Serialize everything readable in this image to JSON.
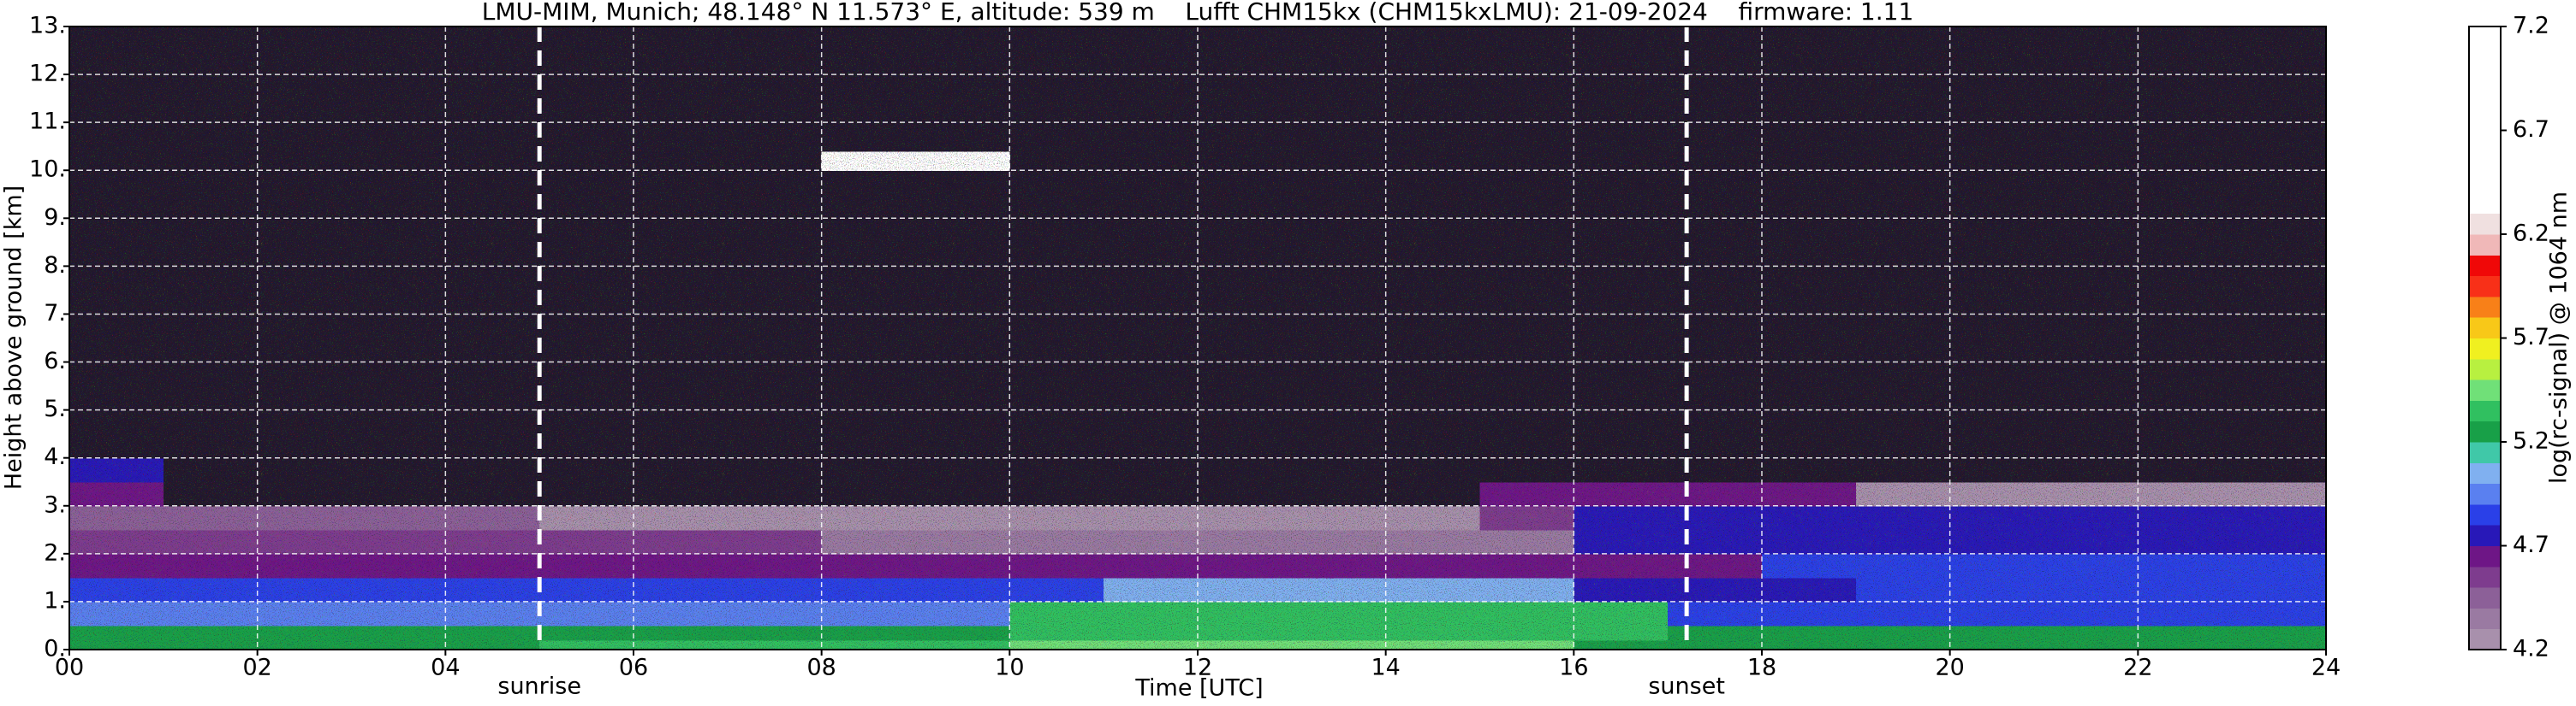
{
  "chart_data": {
    "type": "heatmap",
    "title": "LMU-MIM, Munich; 48.148° N 11.573° E, altitude: 539 m    Lufft CHM15kx (CHM15kxLMU): 21-09-2024    firmware: 1.11",
    "xlabel": "Time [UTC]",
    "ylabel": "Height above ground [km]",
    "xlim": [
      0,
      24
    ],
    "ylim": [
      0,
      13
    ],
    "xticks": [
      {
        "value": 0,
        "label": "00"
      },
      {
        "value": 2,
        "label": "02"
      },
      {
        "value": 4,
        "label": "04"
      },
      {
        "value": 6,
        "label": "06"
      },
      {
        "value": 8,
        "label": "08"
      },
      {
        "value": 10,
        "label": "10"
      },
      {
        "value": 12,
        "label": "12"
      },
      {
        "value": 14,
        "label": "14"
      },
      {
        "value": 16,
        "label": "16"
      },
      {
        "value": 18,
        "label": "18"
      },
      {
        "value": 20,
        "label": "20"
      },
      {
        "value": 22,
        "label": "22"
      },
      {
        "value": 24,
        "label": "24"
      }
    ],
    "yticks": [
      {
        "value": 0,
        "label": "0."
      },
      {
        "value": 1,
        "label": "1."
      },
      {
        "value": 2,
        "label": "2."
      },
      {
        "value": 3,
        "label": "3."
      },
      {
        "value": 4,
        "label": "4."
      },
      {
        "value": 5,
        "label": "5."
      },
      {
        "value": 6,
        "label": "6."
      },
      {
        "value": 7,
        "label": "7."
      },
      {
        "value": 8,
        "label": "8."
      },
      {
        "value": 9,
        "label": "9."
      },
      {
        "value": 10,
        "label": "10."
      },
      {
        "value": 11,
        "label": "11."
      },
      {
        "value": 12,
        "label": "12."
      },
      {
        "value": 13,
        "label": "13."
      }
    ],
    "grid": true,
    "grid_color": "#ffffff",
    "x_bins": [
      0,
      1,
      2,
      3,
      4,
      5,
      6,
      7,
      8,
      9,
      10,
      11,
      12,
      13,
      14,
      15,
      16,
      17,
      18,
      19,
      20,
      21,
      22,
      23,
      24
    ],
    "y_bins": [
      0,
      0.2,
      0.5,
      1.0,
      1.5,
      2.0,
      2.5,
      3.0,
      3.5,
      4.0,
      10.0,
      10.4,
      13
    ],
    "z": [
      [
        5.2,
        5.2,
        5.2,
        5.2,
        5.2,
        5.3,
        5.3,
        5.3,
        5.3,
        5.3,
        5.4,
        5.4,
        5.4,
        5.4,
        5.4,
        5.4,
        5.2,
        5.2,
        5.2,
        5.2,
        5.2,
        5.2,
        5.2,
        5.2
      ],
      [
        5.2,
        5.2,
        5.2,
        5.2,
        5.2,
        5.2,
        5.2,
        5.2,
        5.2,
        5.2,
        5.35,
        5.35,
        5.35,
        5.35,
        5.35,
        5.35,
        5.3,
        5.2,
        5.2,
        5.2,
        5.2,
        5.2,
        5.2,
        5.2
      ],
      [
        4.9,
        4.9,
        4.9,
        4.9,
        4.9,
        4.9,
        4.95,
        4.95,
        4.95,
        4.95,
        5.3,
        5.3,
        5.3,
        5.3,
        5.3,
        5.3,
        5.3,
        4.8,
        4.8,
        4.8,
        4.8,
        4.8,
        4.8,
        4.8
      ],
      [
        4.8,
        4.8,
        4.8,
        4.8,
        4.8,
        4.8,
        4.8,
        4.8,
        4.8,
        4.8,
        4.8,
        5.0,
        5.0,
        5.0,
        5.0,
        5.0,
        4.75,
        4.75,
        4.75,
        4.8,
        4.8,
        4.8,
        4.8,
        4.8
      ],
      [
        4.65,
        4.65,
        4.65,
        4.65,
        4.65,
        4.65,
        4.65,
        4.65,
        4.65,
        4.65,
        4.6,
        4.6,
        4.6,
        4.6,
        4.6,
        4.6,
        4.6,
        4.6,
        4.8,
        4.8,
        4.8,
        4.8,
        4.8,
        4.8
      ],
      [
        4.5,
        4.5,
        4.5,
        4.5,
        4.5,
        4.5,
        4.5,
        4.5,
        4.35,
        4.35,
        4.35,
        4.35,
        4.35,
        4.35,
        4.35,
        4.35,
        4.75,
        4.75,
        4.75,
        4.75,
        4.75,
        4.75,
        4.75,
        4.75
      ],
      [
        4.4,
        4.4,
        4.4,
        4.4,
        4.4,
        4.25,
        4.25,
        4.25,
        4.25,
        4.25,
        4.25,
        4.25,
        4.25,
        4.25,
        4.25,
        4.5,
        4.7,
        4.7,
        4.7,
        4.7,
        4.7,
        4.7,
        4.7,
        4.7
      ],
      [
        4.6,
        4.1,
        4.1,
        4.1,
        4.1,
        4.1,
        4.1,
        4.1,
        4.1,
        4.1,
        4.1,
        4.1,
        4.1,
        4.1,
        4.1,
        4.6,
        4.6,
        4.6,
        4.6,
        4.2,
        4.2,
        4.2,
        4.2,
        4.2
      ],
      [
        4.7,
        4.05,
        4.05,
        4.05,
        4.05,
        4.05,
        4.05,
        4.05,
        4.05,
        4.05,
        4.05,
        4.05,
        4.05,
        4.05,
        4.05,
        4.05,
        4.05,
        4.05,
        4.05,
        4.05,
        4.05,
        4.05,
        4.05,
        4.05
      ],
      [
        4.0,
        4.0,
        4.0,
        4.0,
        4.0,
        4.0,
        4.0,
        4.0,
        4.0,
        4.0,
        4.0,
        4.0,
        4.0,
        4.0,
        4.0,
        4.0,
        4.0,
        4.0,
        4.0,
        4.0,
        4.0,
        4.0,
        4.0,
        4.0
      ],
      [
        4.0,
        4.0,
        4.0,
        4.0,
        4.0,
        4.0,
        4.0,
        4.0,
        6.5,
        6.3,
        4.0,
        4.0,
        4.0,
        4.0,
        4.0,
        4.0,
        4.0,
        4.0,
        4.0,
        4.0,
        4.0,
        4.0,
        4.0,
        4.0
      ],
      [
        4.0,
        4.0,
        4.0,
        4.0,
        4.0,
        4.0,
        4.0,
        4.0,
        4.0,
        4.0,
        4.0,
        4.0,
        4.0,
        4.0,
        4.0,
        4.0,
        4.0,
        4.0,
        4.0,
        4.0,
        4.0,
        4.0,
        4.0,
        4.0
      ]
    ],
    "below_color": "#22182c",
    "colors": [
      "#a890ac",
      "#9a7aa2",
      "#8c6098",
      "#7e3c8e",
      "#6e1686",
      "#2818b8",
      "#2a40e8",
      "#5a80f0",
      "#80b0f0",
      "#40c8a8",
      "#18a048",
      "#30c060",
      "#70e078",
      "#b8f040",
      "#f0f020",
      "#f8c818",
      "#f88018",
      "#f83018",
      "#f00808",
      "#f0b8b8",
      "#f0e0e0",
      "#ffffff",
      "#ffffff",
      "#ffffff",
      "#ffffff",
      "#ffffff",
      "#ffffff",
      "#ffffff",
      "#ffffff",
      "#ffffff"
    ],
    "clim": [
      4.2,
      7.2
    ],
    "cticks": [
      4.2,
      4.7,
      5.2,
      5.7,
      6.2,
      6.7,
      7.2
    ],
    "clabel": "log(rc-signal) @ 1064 nm",
    "annotations": [
      {
        "text": "sunrise",
        "x": 5.0
      },
      {
        "text": "sunset",
        "x": 17.2
      }
    ]
  }
}
